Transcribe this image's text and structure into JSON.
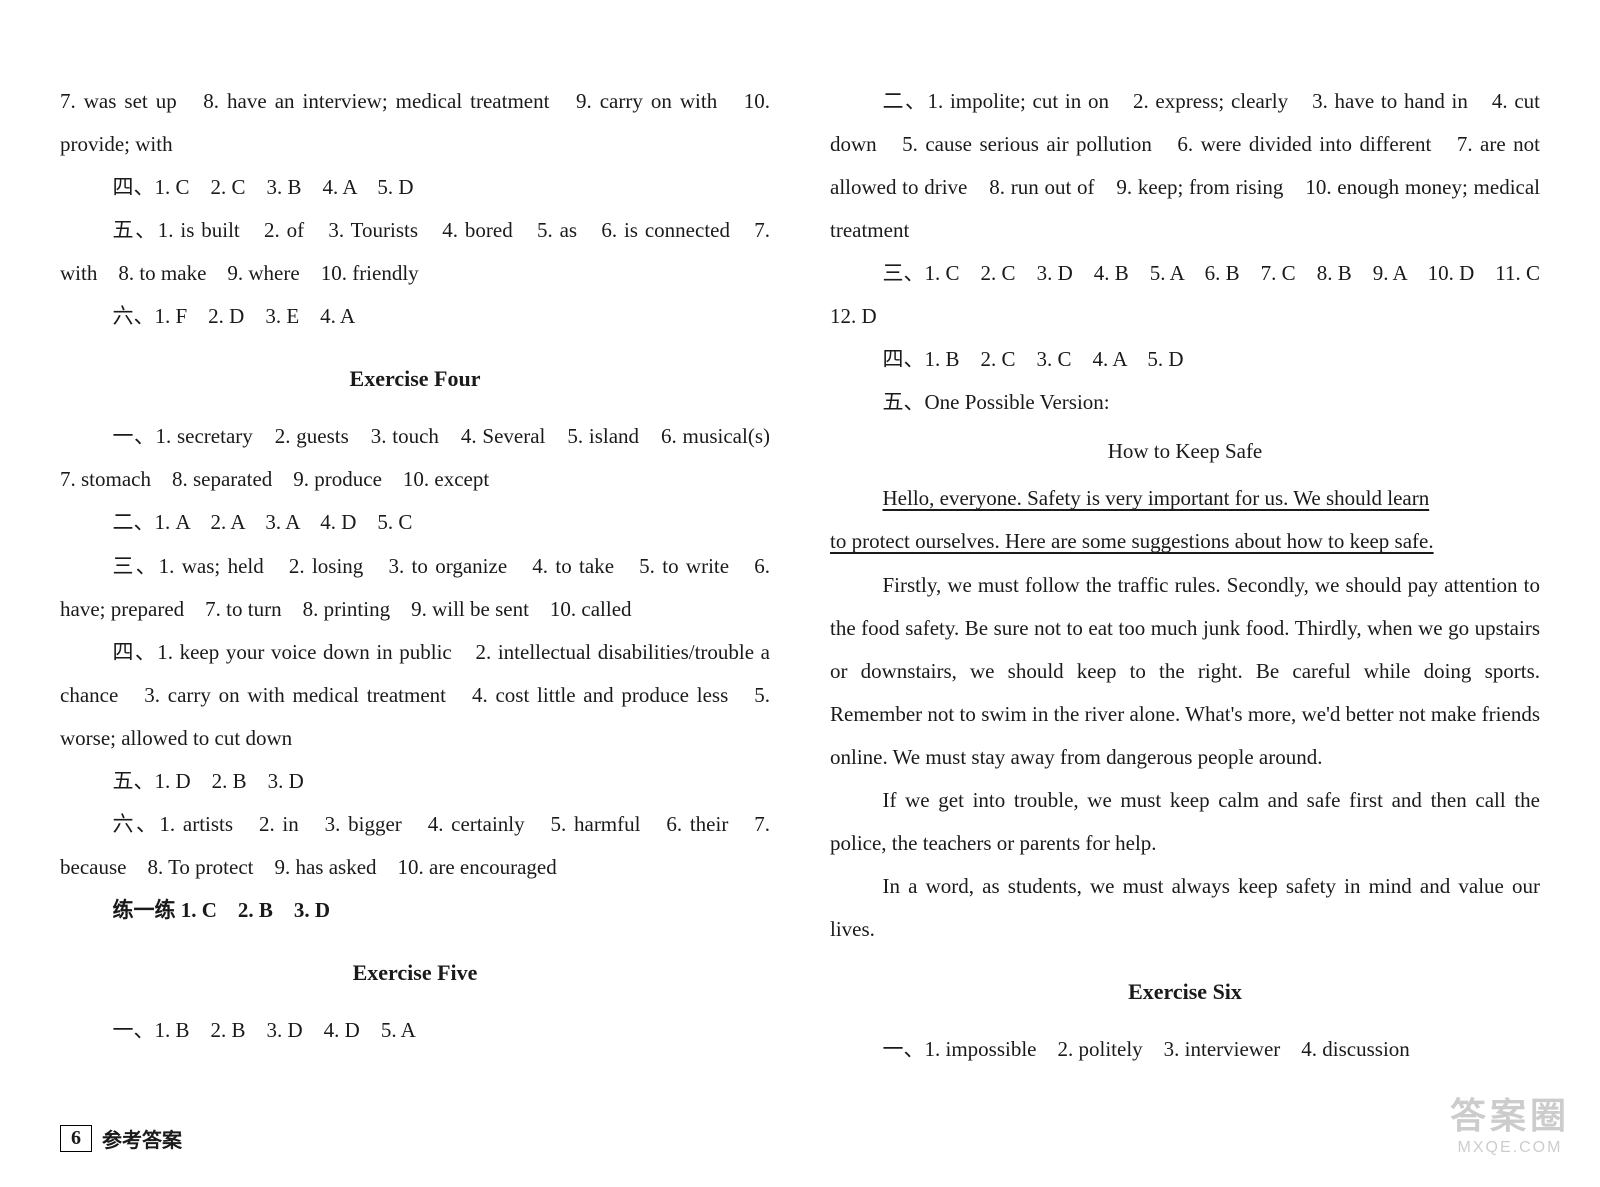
{
  "left": {
    "p1": "7. was set up　8. have an interview; medical treatment　9. carry on with　10. provide; with",
    "p2": "四、1. C　2. C　3. B　4. A　5. D",
    "p3": "五、1. is built　2. of　3. Tourists　4. bored　5. as　6. is connected　7. with　8. to make　9. where　10. friendly",
    "p4": "六、1. F　2. D　3. E　4. A",
    "h1": "Exercise Four",
    "p5": "一、1. secretary　2. guests　3. touch　4. Several　5. island　6. musical(s)　7. stomach　8. separated　9. produce　10. except",
    "p6": "二、1. A　2. A　3. A　4. D　5. C",
    "p7": "三、1. was; held　2. losing　3. to organize　4. to take　5. to write　6. have; prepared　7. to turn　8. printing　9. will be sent　10. called",
    "p8": "四、1. keep your voice down in public　2. intellectual disabilities/trouble a chance　3. carry on with medical treatment　4. cost little and produce less　5. worse; allowed to cut down",
    "p9": "五、1. D　2. B　3. D",
    "p10": "六、1. artists　2. in　3. bigger　4. certainly　5. harmful　6. their　7. because　8. To protect　9. has asked　10. are encouraged",
    "p11": "练一练 1. C　2. B　3. D",
    "h2": "Exercise Five",
    "p12": "一、1. B　2. B　3. D　4. D　5. A"
  },
  "right": {
    "p1": "二、1. impolite; cut in on　2. express; clearly　3. have to hand in　4. cut down　5. cause serious air pollution　6. were divided into different　7. are not allowed to drive　8. run out of　9. keep; from rising　10. enough money; medical treatment",
    "p2": "三、1. C　2. C　3. D　4. B　5. A　6. B　7. C　8. B　9. A　10. D　11. C　12. D",
    "p3": "四、1. B　2. C　3. C　4. A　5. D",
    "p4": "五、One Possible Version:",
    "sub": "How to Keep Safe",
    "u1": "Hello, everyone. Safety is very important for us. We should learn",
    "u2": "to protect ourselves. Here are some suggestions about how to keep safe.",
    "e1": "Firstly, we must follow the traffic rules. Secondly, we should pay attention to the food safety. Be sure not to eat too much junk food. Thirdly, when we go upstairs or downstairs, we should keep to the right. Be careful while doing sports. Remember not to swim in the river alone. What's more, we'd better not make friends online. We must stay away from dangerous people around.",
    "e2": "If we get into trouble, we must keep calm and safe first and then call the police, the teachers or parents for help.",
    "e3": "In a word, as students, we must always keep safety in mind and value our lives.",
    "h1": "Exercise Six",
    "p5": "一、1. impossible　2. politely　3. interviewer　4. discussion"
  },
  "footer": {
    "num": "6",
    "label": "参考答案"
  },
  "watermark": {
    "l1": "答案圈",
    "l2": "MXQE.COM"
  },
  "colors": {
    "text": "#1a1a1a",
    "bg": "#ffffff"
  }
}
